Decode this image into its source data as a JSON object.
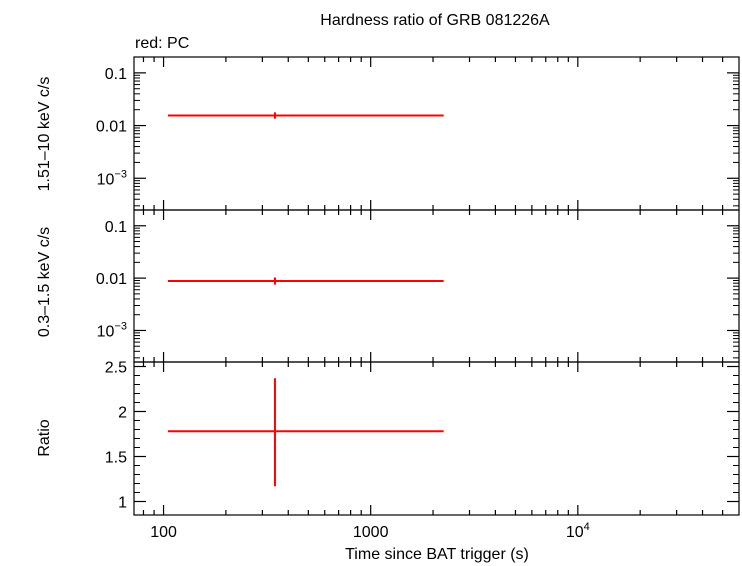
{
  "chart_data": {
    "type": "scatter",
    "title": "Hardness ratio of GRB 081226A",
    "subtitle": "red: PC",
    "xlabel": "Time since BAT trigger (s)",
    "xscale": "log",
    "xlim": [
      72,
      60000
    ],
    "xticks": [
      {
        "v": 100,
        "label": "100"
      },
      {
        "v": 1000,
        "label": "1000"
      },
      {
        "v": 10000,
        "label": "10",
        "sup": "4"
      }
    ],
    "colors": {
      "pc": "#ff0000",
      "axes": "#000000"
    },
    "panels": [
      {
        "id": "hard",
        "ylabel": "1.51–10 keV c/s",
        "yscale": "log",
        "ylim": [
          0.00025,
          0.2
        ],
        "yticks": [
          {
            "v": 0.1,
            "label": "0.1"
          },
          {
            "v": 0.01,
            "label": "0.01"
          },
          {
            "v": 0.001,
            "label": "10",
            "sup": "−3"
          }
        ],
        "points": [
          {
            "x": 345,
            "xlo": 105,
            "xhi": 2250,
            "y": 0.0155,
            "ylo": 0.0135,
            "yhi": 0.0178
          }
        ]
      },
      {
        "id": "soft",
        "ylabel": "0.3–1.5 keV c/s",
        "yscale": "log",
        "ylim": [
          0.00025,
          0.2
        ],
        "yticks": [
          {
            "v": 0.1,
            "label": "0.1"
          },
          {
            "v": 0.01,
            "label": "0.01"
          },
          {
            "v": 0.001,
            "label": "10",
            "sup": "−3"
          }
        ],
        "points": [
          {
            "x": 345,
            "xlo": 105,
            "xhi": 2250,
            "y": 0.0088,
            "ylo": 0.0075,
            "yhi": 0.0103
          }
        ]
      },
      {
        "id": "ratio",
        "ylabel": "Ratio",
        "yscale": "linear",
        "ylim": [
          0.85,
          2.55
        ],
        "yticks": [
          {
            "v": 2.5,
            "label": "2.5"
          },
          {
            "v": 2,
            "label": "2"
          },
          {
            "v": 1.5,
            "label": "1.5"
          },
          {
            "v": 1,
            "label": "1"
          }
        ],
        "points": [
          {
            "x": 345,
            "xlo": 105,
            "xhi": 2250,
            "y": 1.78,
            "ylo": 1.17,
            "yhi": 2.37
          }
        ]
      }
    ]
  }
}
